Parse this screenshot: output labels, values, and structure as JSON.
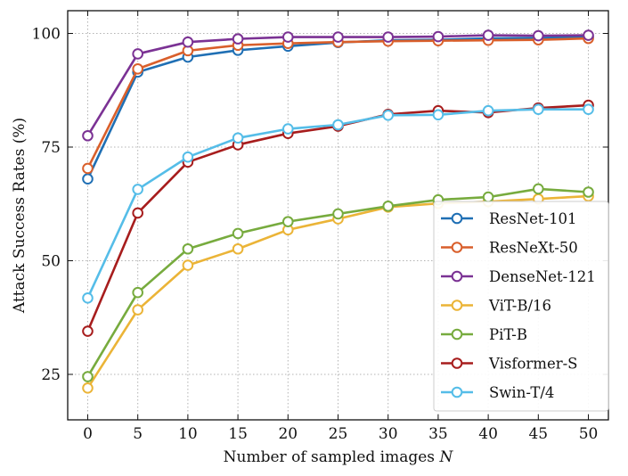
{
  "chart_data": {
    "type": "line",
    "title": "",
    "xlabel": "Number of sampled images",
    "xlabel_var": "N",
    "ylabel": "Attack Success Rates (%)",
    "x": [
      0,
      5,
      10,
      15,
      20,
      25,
      30,
      35,
      40,
      45,
      50
    ],
    "xlim": [
      -2,
      52
    ],
    "ylim": [
      15,
      105
    ],
    "xticks": [
      "0",
      "5",
      "10",
      "15",
      "20",
      "25",
      "30",
      "35",
      "40",
      "45",
      "50"
    ],
    "yticks": [
      "25",
      "50",
      "75",
      "100"
    ],
    "grid": true,
    "legend_position": "lower-right",
    "series": [
      {
        "name": "ResNet-101",
        "color": "#1f6fb4",
        "values": [
          68.0,
          91.5,
          94.8,
          96.3,
          97.2,
          98.0,
          98.5,
          98.6,
          98.9,
          99.0,
          99.2
        ]
      },
      {
        "name": "ResNeXt-50",
        "color": "#d95f2b",
        "values": [
          70.3,
          92.2,
          96.2,
          97.4,
          97.8,
          98.1,
          98.3,
          98.4,
          98.5,
          98.6,
          98.9
        ]
      },
      {
        "name": "DenseNet-121",
        "color": "#7b3294",
        "values": [
          77.5,
          95.5,
          98.1,
          98.8,
          99.2,
          99.2,
          99.2,
          99.3,
          99.6,
          99.5,
          99.6
        ]
      },
      {
        "name": "ViT-B/16",
        "color": "#ebb437",
        "values": [
          22.0,
          39.2,
          49.0,
          52.6,
          56.8,
          59.2,
          61.8,
          62.6,
          63.0,
          63.6,
          64.2
        ]
      },
      {
        "name": "PiT-B",
        "color": "#77ab3e",
        "values": [
          24.5,
          43.0,
          52.6,
          56.0,
          58.6,
          60.3,
          62.0,
          63.4,
          64.0,
          65.8,
          65.1
        ]
      },
      {
        "name": "Visformer-S",
        "color": "#a71d1d",
        "values": [
          34.5,
          60.5,
          71.7,
          75.5,
          78.0,
          79.6,
          82.2,
          83.0,
          82.6,
          83.6,
          84.2
        ]
      },
      {
        "name": "Swin-T/4",
        "color": "#55bde8",
        "values": [
          41.8,
          65.7,
          72.8,
          77.0,
          79.0,
          79.9,
          82.0,
          82.1,
          83.0,
          83.3,
          83.3
        ]
      }
    ]
  }
}
